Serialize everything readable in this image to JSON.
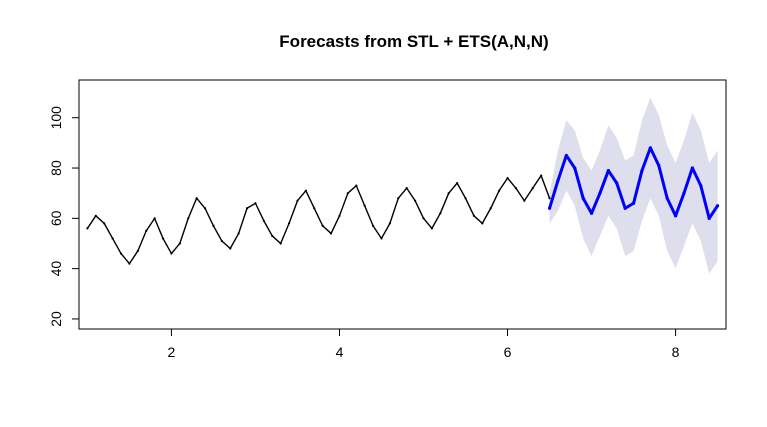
{
  "chart_data": {
    "type": "line",
    "title": "Forecasts from STL +  ETS(A,N,N)",
    "xlabel": "",
    "ylabel": "",
    "xlim": [
      0.9,
      8.6
    ],
    "ylim": [
      16,
      115
    ],
    "x_ticks": [
      2,
      4,
      6,
      8
    ],
    "y_ticks": [
      20,
      40,
      60,
      80,
      100
    ],
    "grid": false,
    "series": [
      {
        "role": "observed",
        "color": "#000000",
        "x": [
          1.0,
          1.1,
          1.2,
          1.3,
          1.4,
          1.5,
          1.6,
          1.7,
          1.8,
          1.9,
          2.0,
          2.1,
          2.2,
          2.3,
          2.4,
          2.5,
          2.6,
          2.7,
          2.8,
          2.9,
          3.0,
          3.1,
          3.2,
          3.3,
          3.4,
          3.5,
          3.6,
          3.7,
          3.8,
          3.9,
          4.0,
          4.1,
          4.2,
          4.3,
          4.4,
          4.5,
          4.6,
          4.7,
          4.8,
          4.9,
          5.0,
          5.1,
          5.2,
          5.3,
          5.4,
          5.5,
          5.6,
          5.7,
          5.8,
          5.9,
          6.0,
          6.1,
          6.2,
          6.3,
          6.4,
          6.5
        ],
        "y": [
          56,
          61,
          58,
          52,
          46,
          42,
          47,
          55,
          60,
          52,
          46,
          50,
          60,
          68,
          64,
          57,
          51,
          48,
          54,
          64,
          66,
          59,
          53,
          50,
          58,
          67,
          71,
          64,
          57,
          54,
          61,
          70,
          73,
          65,
          57,
          52,
          58,
          68,
          72,
          67,
          60,
          56,
          62,
          70,
          74,
          68,
          61,
          58,
          64,
          71,
          76,
          72,
          67,
          72,
          77,
          68
        ]
      },
      {
        "role": "forecast",
        "color": "#0000ff",
        "x": [
          6.5,
          6.6,
          6.7,
          6.8,
          6.9,
          7.0,
          7.1,
          7.2,
          7.3,
          7.4,
          7.5,
          7.6,
          7.7,
          7.8,
          7.9,
          8.0,
          8.1,
          8.2,
          8.3,
          8.4,
          8.5
        ],
        "y": [
          64,
          75,
          85,
          80,
          68,
          62,
          70,
          79,
          74,
          64,
          66,
          79,
          88,
          81,
          68,
          61,
          70,
          80,
          73,
          60,
          65
        ],
        "interval_halfwidth": [
          6,
          12,
          14,
          15,
          16,
          17,
          17,
          18,
          18,
          19,
          19,
          20,
          20,
          20,
          21,
          21,
          21,
          22,
          22,
          22,
          22
        ]
      }
    ],
    "colors": {
      "observed": "#000000",
      "forecast": "#0000ff",
      "interval": "#d0d0e6"
    }
  }
}
